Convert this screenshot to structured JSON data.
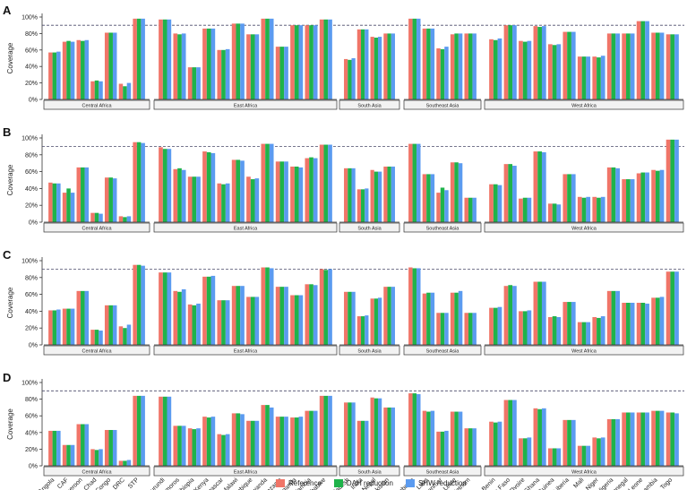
{
  "chart_data": {
    "type": "bar",
    "ylabel": "Coverage",
    "yticks": [
      "0%",
      "20%",
      "40%",
      "60%",
      "80%",
      "100%"
    ],
    "ylim": [
      0,
      100
    ],
    "reference_line": 90,
    "grid": false,
    "legend_position": "bottom",
    "series": [
      {
        "name": "Reference",
        "color": "#f07568"
      },
      {
        "name": "DAH reduction",
        "color": "#1fb34a"
      },
      {
        "name": "SHW reduction",
        "color": "#5b9bf0"
      }
    ],
    "regions": [
      {
        "name": "Central Africa",
        "countries": [
          "Angola",
          "CAF",
          "Cameroon",
          "Chad",
          "Congo",
          "DRC",
          "STP"
        ]
      },
      {
        "name": "East Africa",
        "countries": [
          "Burundi",
          "Comoros",
          "Ethiopia",
          "Kenya",
          "Madagascar",
          "Malawi",
          "Mozambique",
          "Rwanda",
          "Tanzania",
          "Uganda",
          "Zambia",
          "Zimbabwe"
        ]
      },
      {
        "name": "South Asia",
        "countries": [
          "Bangladesh",
          "India",
          "Nepal",
          "Pakistan"
        ]
      },
      {
        "name": "Southeast Asia",
        "countries": [
          "Cambodia",
          "Laos",
          "Myanmar",
          "Timor-Leste",
          "Vietnam"
        ]
      },
      {
        "name": "West Africa",
        "countries": [
          "Benin",
          "Burkina Faso",
          "Cote d'Ivoire",
          "Ghana",
          "Guinea",
          "Liberia",
          "Mali",
          "Niger",
          "Nigeria",
          "Senegal",
          "Sierra Leone",
          "The Gambia",
          "Togo"
        ]
      }
    ],
    "panels": [
      {
        "label": "A",
        "values": [
          [
            57,
            57,
            58
          ],
          [
            70,
            71,
            70
          ],
          [
            72,
            71,
            72
          ],
          [
            22,
            23,
            22
          ],
          [
            81,
            81,
            81
          ],
          [
            19,
            16,
            20
          ],
          [
            98,
            98,
            98
          ],
          [
            97,
            97,
            97
          ],
          [
            80,
            79,
            80
          ],
          [
            39,
            39,
            39
          ],
          [
            86,
            86,
            86
          ],
          [
            60,
            60,
            61
          ],
          [
            92,
            92,
            92
          ],
          [
            79,
            79,
            79
          ],
          [
            98,
            98,
            98
          ],
          [
            64,
            64,
            64
          ],
          [
            90,
            90,
            90
          ],
          [
            90,
            90,
            90
          ],
          [
            97,
            97,
            97
          ],
          [
            49,
            48,
            50
          ],
          [
            85,
            85,
            85
          ],
          [
            76,
            75,
            76
          ],
          [
            80,
            80,
            80
          ],
          [
            98,
            98,
            98
          ],
          [
            86,
            86,
            86
          ],
          [
            62,
            61,
            64
          ],
          [
            79,
            80,
            80
          ],
          [
            80,
            80,
            80
          ],
          [
            73,
            72,
            74
          ],
          [
            90,
            90,
            90
          ],
          [
            71,
            70,
            71
          ],
          [
            89,
            88,
            89
          ],
          [
            67,
            66,
            67
          ],
          [
            82,
            82,
            82
          ],
          [
            52,
            52,
            52
          ],
          [
            52,
            51,
            53
          ],
          [
            80,
            80,
            80
          ],
          [
            80,
            80,
            80
          ],
          [
            95,
            95,
            95
          ],
          [
            81,
            81,
            81
          ],
          [
            79,
            79,
            79
          ]
        ]
      },
      {
        "label": "B",
        "values": [
          [
            47,
            46,
            46
          ],
          [
            35,
            40,
            35
          ],
          [
            65,
            65,
            65
          ],
          [
            11,
            11,
            10
          ],
          [
            53,
            53,
            52
          ],
          [
            7,
            6,
            7
          ],
          [
            95,
            95,
            94
          ],
          [
            89,
            87,
            87
          ],
          [
            63,
            64,
            62
          ],
          [
            54,
            54,
            54
          ],
          [
            84,
            83,
            82
          ],
          [
            46,
            45,
            46
          ],
          [
            74,
            74,
            73
          ],
          [
            54,
            51,
            52
          ],
          [
            93,
            93,
            93
          ],
          [
            72,
            72,
            72
          ],
          [
            66,
            66,
            65
          ],
          [
            76,
            77,
            76
          ],
          [
            92,
            92,
            92
          ],
          [
            64,
            64,
            64
          ],
          [
            39,
            39,
            40
          ],
          [
            62,
            60,
            60
          ],
          [
            66,
            66,
            66
          ],
          [
            93,
            93,
            93
          ],
          [
            57,
            57,
            57
          ],
          [
            35,
            41,
            38
          ],
          [
            71,
            71,
            70
          ],
          [
            29,
            29,
            29
          ],
          [
            45,
            45,
            44
          ],
          [
            69,
            69,
            67
          ],
          [
            28,
            29,
            29
          ],
          [
            84,
            84,
            83
          ],
          [
            22,
            22,
            21
          ],
          [
            57,
            57,
            57
          ],
          [
            30,
            29,
            30
          ],
          [
            30,
            29,
            30
          ],
          [
            65,
            65,
            64
          ],
          [
            51,
            51,
            51
          ],
          [
            58,
            59,
            59
          ],
          [
            62,
            61,
            62
          ],
          [
            98,
            98,
            98
          ]
        ]
      },
      {
        "label": "C",
        "values": [
          [
            41,
            41,
            42
          ],
          [
            43,
            43,
            43
          ],
          [
            64,
            64,
            64
          ],
          [
            18,
            18,
            17
          ],
          [
            47,
            47,
            47
          ],
          [
            22,
            20,
            24
          ],
          [
            95,
            95,
            94
          ],
          [
            86,
            86,
            86
          ],
          [
            64,
            63,
            66
          ],
          [
            48,
            47,
            49
          ],
          [
            81,
            81,
            82
          ],
          [
            53,
            53,
            53
          ],
          [
            70,
            70,
            70
          ],
          [
            57,
            57,
            57
          ],
          [
            92,
            92,
            91
          ],
          [
            69,
            69,
            69
          ],
          [
            59,
            59,
            59
          ],
          [
            72,
            72,
            71
          ],
          [
            90,
            89,
            90
          ],
          [
            63,
            63,
            63
          ],
          [
            34,
            34,
            35
          ],
          [
            55,
            55,
            56
          ],
          [
            69,
            69,
            69
          ],
          [
            92,
            91,
            91
          ],
          [
            61,
            62,
            62
          ],
          [
            38,
            38,
            38
          ],
          [
            62,
            62,
            64
          ],
          [
            38,
            38,
            38
          ],
          [
            44,
            44,
            45
          ],
          [
            70,
            71,
            70
          ],
          [
            40,
            40,
            41
          ],
          [
            75,
            75,
            75
          ],
          [
            33,
            34,
            33
          ],
          [
            51,
            51,
            51
          ],
          [
            27,
            27,
            27
          ],
          [
            33,
            32,
            34
          ],
          [
            64,
            64,
            64
          ],
          [
            50,
            50,
            50
          ],
          [
            50,
            50,
            49
          ],
          [
            56,
            56,
            57
          ],
          [
            87,
            87,
            87
          ]
        ]
      },
      {
        "label": "D",
        "values": [
          [
            42,
            42,
            42
          ],
          [
            25,
            25,
            25
          ],
          [
            50,
            50,
            50
          ],
          [
            20,
            19,
            20
          ],
          [
            43,
            43,
            43
          ],
          [
            6,
            6,
            7
          ],
          [
            84,
            84,
            84
          ],
          [
            83,
            83,
            83
          ],
          [
            48,
            48,
            48
          ],
          [
            45,
            44,
            45
          ],
          [
            59,
            58,
            59
          ],
          [
            38,
            37,
            38
          ],
          [
            63,
            63,
            62
          ],
          [
            54,
            54,
            54
          ],
          [
            73,
            73,
            70
          ],
          [
            59,
            59,
            59
          ],
          [
            58,
            58,
            59
          ],
          [
            66,
            66,
            66
          ],
          [
            84,
            84,
            84
          ],
          [
            76,
            76,
            76
          ],
          [
            54,
            54,
            54
          ],
          [
            82,
            81,
            81
          ],
          [
            70,
            70,
            70
          ],
          [
            87,
            87,
            86
          ],
          [
            66,
            65,
            66
          ],
          [
            41,
            41,
            42
          ],
          [
            65,
            65,
            65
          ],
          [
            45,
            45,
            45
          ],
          [
            53,
            52,
            53
          ],
          [
            79,
            79,
            79
          ],
          [
            33,
            33,
            34
          ],
          [
            69,
            68,
            69
          ],
          [
            21,
            21,
            21
          ],
          [
            55,
            55,
            55
          ],
          [
            24,
            24,
            24
          ],
          [
            34,
            33,
            34
          ],
          [
            56,
            56,
            56
          ],
          [
            64,
            64,
            64
          ],
          [
            64,
            64,
            64
          ],
          [
            66,
            66,
            66
          ],
          [
            64,
            64,
            63
          ]
        ]
      }
    ]
  }
}
